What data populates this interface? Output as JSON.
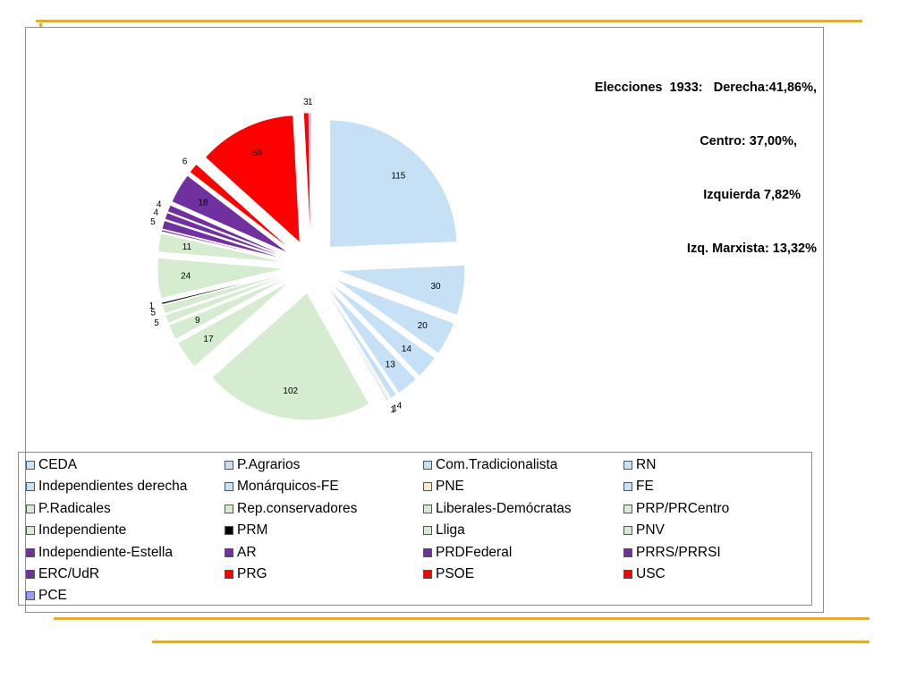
{
  "chart_data": {
    "type": "pie",
    "title_lines": [
      "Elecciones  1933:   Derecha:41,86%,",
      "Centro: 37,00%,",
      "Izquierda 7,82%",
      "Izq. Marxista: 13,32%"
    ],
    "slices": [
      {
        "name": "CEDA",
        "value": 115,
        "color": "#c6e0f5",
        "label": "115"
      },
      {
        "name": "P.Agrarios",
        "value": 30,
        "color": "#c6e0f5",
        "label": "30"
      },
      {
        "name": "Com.Tradicionalista",
        "value": 20,
        "color": "#c6e0f5",
        "label": "20"
      },
      {
        "name": "RN",
        "value": 14,
        "color": "#c6e0f5",
        "label": "14"
      },
      {
        "name": "Independientes derecha",
        "value": 13,
        "color": "#c6e0f5",
        "label": "13"
      },
      {
        "name": "Monárquicos-FE",
        "value": 4,
        "color": "#c6e0f5",
        "label": "4"
      },
      {
        "name": "PNE",
        "value": 1,
        "color": "#fde9c6",
        "label": "1"
      },
      {
        "name": "FE",
        "value": 1,
        "color": "#c6e0f5",
        "label": "1"
      },
      {
        "name": "P.Radicales",
        "value": 102,
        "color": "#d5ecd0",
        "label": "102"
      },
      {
        "name": "Rep.conservadores",
        "value": 17,
        "color": "#d5ecd0",
        "label": "17"
      },
      {
        "name": "Liberales-Demócratas",
        "value": 9,
        "color": "#d5ecd0",
        "label": "9"
      },
      {
        "name": "PRP/PRCentro",
        "value": 5,
        "color": "#d5ecd0",
        "label": "5"
      },
      {
        "name": "Independiente",
        "value": 5,
        "color": "#d5ecd0",
        "label": "5"
      },
      {
        "name": "PRM",
        "value": 1,
        "color": "#000000",
        "label": "1"
      },
      {
        "name": "Lliga",
        "value": 24,
        "color": "#d5ecd0",
        "label": "24"
      },
      {
        "name": "PNV",
        "value": 11,
        "color": "#d5ecd0",
        "label": "11"
      },
      {
        "name": "Independiente-Estella",
        "value": 1,
        "color": "#7030a0",
        "label": ""
      },
      {
        "name": "AR",
        "value": 5,
        "color": "#7030a0",
        "label": "5"
      },
      {
        "name": "PRDFederal",
        "value": 4,
        "color": "#7030a0",
        "label": "4"
      },
      {
        "name": "PRRS/PRRSI",
        "value": 4,
        "color": "#7030a0",
        "label": "4"
      },
      {
        "name": "ERC/UdR",
        "value": 18,
        "color": "#7030a0",
        "label": "18"
      },
      {
        "name": "PRG",
        "value": 6,
        "color": "#ff0000",
        "label": "6"
      },
      {
        "name": "PSOE",
        "value": 59,
        "color": "#ff0000",
        "label": "59"
      },
      {
        "name": "USC",
        "value": 3,
        "color": "#ff0000",
        "label": "3"
      },
      {
        "name": "PCE",
        "value": 1,
        "color": "#9999ff",
        "label": "1"
      }
    ],
    "legend_position": "bottom"
  },
  "colors": {
    "derecha": "#c6e0f5",
    "centro": "#d5ecd0",
    "izquierda": "#7030a0",
    "izquierda_marxista": "#ff0000",
    "decoration": "#e0ad3a"
  }
}
